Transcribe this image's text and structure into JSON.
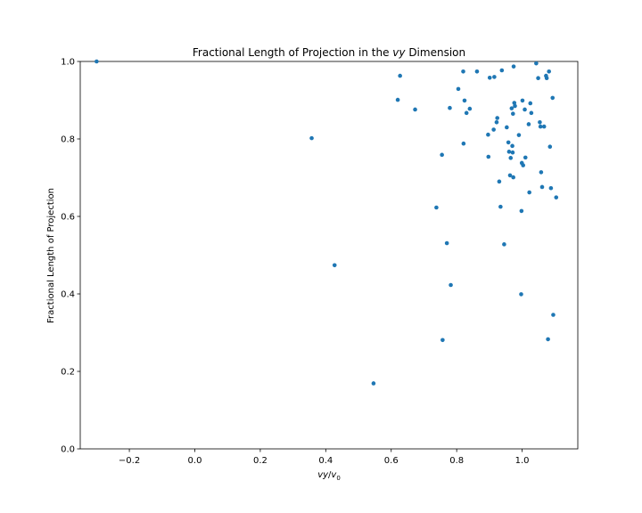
{
  "chart_data": {
    "type": "scatter",
    "title_prefix": "Fractional Length of Projection in the ",
    "title_var": "vy",
    "title_suffix": " Dimension",
    "xlabel_num": "vy",
    "xlabel_sep": "/",
    "xlabel_den": "v",
    "xlabel_sub": "0",
    "ylabel": "Fractional Length of Projection",
    "xlim": [
      -0.35,
      1.17
    ],
    "ylim": [
      0.0,
      1.0
    ],
    "xticks": [
      -0.2,
      0.0,
      0.2,
      0.4,
      0.6,
      0.8,
      1.0
    ],
    "xtick_labels": [
      "−0.2",
      "0.0",
      "0.2",
      "0.4",
      "0.6",
      "0.8",
      "1.0"
    ],
    "yticks": [
      0.0,
      0.2,
      0.4,
      0.6,
      0.8,
      1.0
    ],
    "ytick_labels": [
      "0.0",
      "0.2",
      "0.4",
      "0.6",
      "0.8",
      "1.0"
    ],
    "grid": false,
    "marker_color": "#1f77b4",
    "points": [
      [
        -0.3,
        1.0
      ],
      [
        0.357,
        0.802
      ],
      [
        0.427,
        0.474
      ],
      [
        0.546,
        0.169
      ],
      [
        0.62,
        0.901
      ],
      [
        0.627,
        0.963
      ],
      [
        0.673,
        0.876
      ],
      [
        0.738,
        0.623
      ],
      [
        0.755,
        0.759
      ],
      [
        0.757,
        0.281
      ],
      [
        0.77,
        0.531
      ],
      [
        0.779,
        0.88
      ],
      [
        0.782,
        0.423
      ],
      [
        0.805,
        0.929
      ],
      [
        0.82,
        0.974
      ],
      [
        0.821,
        0.788
      ],
      [
        0.824,
        0.899
      ],
      [
        0.83,
        0.867
      ],
      [
        0.84,
        0.878
      ],
      [
        0.862,
        0.974
      ],
      [
        0.896,
        0.811
      ],
      [
        0.897,
        0.754
      ],
      [
        0.901,
        0.958
      ],
      [
        0.913,
        0.824
      ],
      [
        0.915,
        0.96
      ],
      [
        0.922,
        0.843
      ],
      [
        0.924,
        0.854
      ],
      [
        0.93,
        0.69
      ],
      [
        0.934,
        0.625
      ],
      [
        0.938,
        0.977
      ],
      [
        0.945,
        0.528
      ],
      [
        0.953,
        0.83
      ],
      [
        0.958,
        0.791
      ],
      [
        0.96,
        0.767
      ],
      [
        0.963,
        0.706
      ],
      [
        0.965,
        0.751
      ],
      [
        0.968,
        0.879
      ],
      [
        0.97,
        0.782
      ],
      [
        0.971,
        0.765
      ],
      [
        0.972,
        0.865
      ],
      [
        0.973,
        0.701
      ],
      [
        0.974,
        0.987
      ],
      [
        0.976,
        0.893
      ],
      [
        0.978,
        0.885
      ],
      [
        0.99,
        0.81
      ],
      [
        0.997,
        0.399
      ],
      [
        0.998,
        0.614
      ],
      [
        0.999,
        0.738
      ],
      [
        1.001,
        0.899
      ],
      [
        1.003,
        0.732
      ],
      [
        1.008,
        0.876
      ],
      [
        1.01,
        0.752
      ],
      [
        1.02,
        0.838
      ],
      [
        1.022,
        0.662
      ],
      [
        1.025,
        0.892
      ],
      [
        1.028,
        0.867
      ],
      [
        1.043,
        0.995
      ],
      [
        1.049,
        0.957
      ],
      [
        1.054,
        0.843
      ],
      [
        1.056,
        0.832
      ],
      [
        1.058,
        0.714
      ],
      [
        1.061,
        0.676
      ],
      [
        1.067,
        0.832
      ],
      [
        1.073,
        0.963
      ],
      [
        1.075,
        0.957
      ],
      [
        1.079,
        0.283
      ],
      [
        1.082,
        0.974
      ],
      [
        1.085,
        0.78
      ],
      [
        1.088,
        0.673
      ],
      [
        1.093,
        0.906
      ],
      [
        1.095,
        0.346
      ],
      [
        1.104,
        0.649
      ]
    ]
  }
}
